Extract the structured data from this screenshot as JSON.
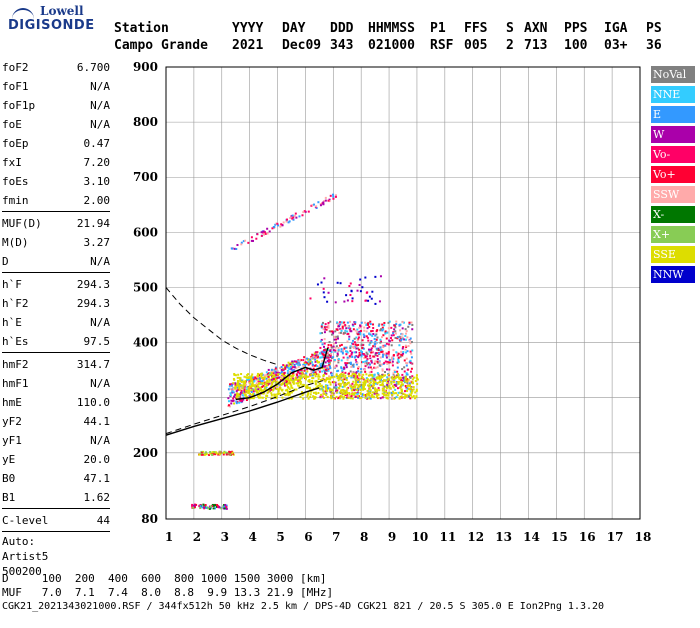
{
  "logo": {
    "line1": "Lowell",
    "line2": "DIGISONDE"
  },
  "header": {
    "labels": [
      "Station",
      "YYYY",
      "DAY",
      "DDD",
      "HHMMSS",
      "P1",
      "FFS",
      "S",
      "AXN",
      "PPS",
      "IGA",
      "PS"
    ],
    "values": [
      "Campo Grande",
      "2021",
      "Dec09",
      "343",
      "021000",
      "RSF",
      "005",
      "2",
      "713",
      "100",
      "03+",
      "36"
    ]
  },
  "params": {
    "group1": [
      {
        "name": "foF2",
        "value": "6.700"
      },
      {
        "name": "foF1",
        "value": "N/A"
      },
      {
        "name": "foF1p",
        "value": "N/A"
      },
      {
        "name": "foE",
        "value": "N/A"
      },
      {
        "name": "foEp",
        "value": "0.47"
      },
      {
        "name": "fxI",
        "value": "7.20"
      },
      {
        "name": "foEs",
        "value": "3.10"
      },
      {
        "name": "fmin",
        "value": "2.00"
      }
    ],
    "group2": [
      {
        "name": "MUF(D)",
        "value": "21.94"
      },
      {
        "name": "M(D)",
        "value": "3.27"
      },
      {
        "name": "D",
        "value": "N/A"
      }
    ],
    "group3": [
      {
        "name": "h`F",
        "value": "294.3"
      },
      {
        "name": "h`F2",
        "value": "294.3"
      },
      {
        "name": "h`E",
        "value": "N/A"
      },
      {
        "name": "h`Es",
        "value": "97.5"
      }
    ],
    "group4": [
      {
        "name": "hmF2",
        "value": "314.7"
      },
      {
        "name": "hmF1",
        "value": "N/A"
      },
      {
        "name": "hmE",
        "value": "110.0"
      },
      {
        "name": "yF2",
        "value": "44.1"
      },
      {
        "name": "yF1",
        "value": "N/A"
      },
      {
        "name": "yE",
        "value": "20.0"
      },
      {
        "name": "B0",
        "value": "47.1"
      },
      {
        "name": "B1",
        "value": "1.62"
      }
    ],
    "group5": [
      {
        "name": "C-level",
        "value": "44"
      }
    ],
    "auto": [
      "Auto:",
      "Artist5",
      "500200"
    ]
  },
  "legend": [
    {
      "label": "NoVal",
      "color": "#808080"
    },
    {
      "label": "NNE",
      "color": "#33ccff"
    },
    {
      "label": "E",
      "color": "#3399ff"
    },
    {
      "label": "W",
      "color": "#aa00aa"
    },
    {
      "label": "Vo-",
      "color": "#ff0066"
    },
    {
      "label": "Vo+",
      "color": "#ff0033"
    },
    {
      "label": "SSW",
      "color": "#ffaaaa"
    },
    {
      "label": "X-",
      "color": "#007700"
    },
    {
      "label": "X+",
      "color": "#88cc55"
    },
    {
      "label": "SSE",
      "color": "#dddd00"
    },
    {
      "label": "NNW",
      "color": "#0000cc"
    }
  ],
  "footer": {
    "line1": "D     100  200  400  600  800 1000 1500 3000 [km]",
    "line2": "MUF   7.0  7.1  7.4  8.0  8.8  9.9 13.3 21.9 [MHz]",
    "line3": "CGK21_2021343021000.RSF / 344fx512h 50 kHz 2.5 km / DPS-4D CGK21 821 / 20.5 S 305.0 E Ion2Png 1.3.20"
  },
  "chart_data": {
    "type": "scatter",
    "title": "",
    "xlabel": "",
    "ylabel": "",
    "xlim": [
      1,
      18
    ],
    "ylim": [
      80,
      900
    ],
    "x_ticks": [
      1,
      2,
      3,
      4,
      5,
      6,
      7,
      8,
      9,
      10,
      11,
      12,
      13,
      14,
      15,
      16,
      17,
      18
    ],
    "y_ticks": [
      80,
      200,
      300,
      400,
      500,
      600,
      700,
      800,
      900
    ],
    "grid": true,
    "legend_position": "right",
    "echo_regions": [
      {
        "name": "Es",
        "x": [
          1.9,
          3.2
        ],
        "y": [
          100,
          108
        ],
        "colors": [
          "#ff0033",
          "#ff0066",
          "#3399ff",
          "#88cc55",
          "#aa00aa",
          "#007700"
        ]
      },
      {
        "name": "Es-2",
        "x": [
          2.1,
          3.4
        ],
        "y": [
          198,
          204
        ],
        "colors": [
          "#ff0033",
          "#dddd00",
          "#88cc55"
        ]
      },
      {
        "name": "F-o",
        "x": [
          3.2,
          6.9
        ],
        "y": [
          290,
          390
        ],
        "colors": [
          "#ff0066",
          "#aa00aa",
          "#ff0033",
          "#ffaaaa",
          "#3399ff",
          "#33ccff",
          "#dddd00"
        ]
      },
      {
        "name": "F-spread",
        "x": [
          6.5,
          9.8
        ],
        "y": [
          300,
          440
        ],
        "colors": [
          "#ff0066",
          "#aa00aa",
          "#3399ff",
          "#33ccff",
          "#ffaaaa",
          "#ff0033",
          "#808080"
        ]
      },
      {
        "name": "F-x",
        "x": [
          3.4,
          10.0
        ],
        "y": [
          300,
          345
        ],
        "colors": [
          "#dddd00"
        ]
      },
      {
        "name": "F-2hop",
        "x": [
          3.3,
          7.1
        ],
        "y": [
          570,
          670
        ],
        "colors": [
          "#ff0066",
          "#aa00aa",
          "#ffaaaa",
          "#3399ff"
        ]
      },
      {
        "name": "top",
        "x": [
          6.0,
          8.9
        ],
        "y": [
          470,
          530
        ],
        "colors": [
          "#0000cc",
          "#aa00aa",
          "#ff0066"
        ]
      }
    ],
    "true_height_profile": {
      "x": [
        1.0,
        2.0,
        3.0,
        4.0,
        5.0,
        6.0,
        6.5
      ],
      "y": [
        232,
        248,
        262,
        276,
        292,
        310,
        318
      ]
    },
    "trace_virtual": {
      "x": [
        3.5,
        4.0,
        4.5,
        5.0,
        5.5,
        6.0,
        6.3,
        6.6,
        6.8
      ],
      "y": [
        297,
        300,
        310,
        325,
        345,
        355,
        350,
        355,
        390
      ]
    },
    "dashed_upper": {
      "x": [
        1.0,
        1.5,
        2.0,
        2.5,
        3.0,
        3.5,
        4.0,
        4.5,
        5.0
      ],
      "y": [
        500,
        470,
        445,
        425,
        405,
        390,
        378,
        368,
        360
      ]
    },
    "dashed_lower": {
      "x": [
        1.0,
        2.0,
        3.0,
        4.0,
        5.0,
        6.0,
        6.7
      ],
      "y": [
        235,
        252,
        268,
        284,
        302,
        322,
        332
      ]
    }
  }
}
